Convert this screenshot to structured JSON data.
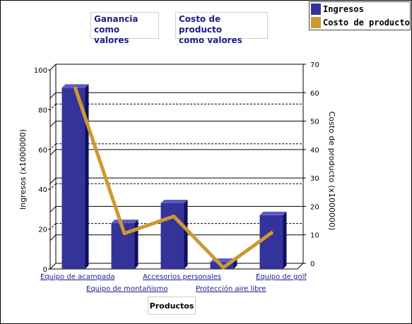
{
  "buttons": {
    "profit_label": "Ganancia\ncomo valores",
    "cost_label": "Costo de producto\ncomo valores"
  },
  "legend": {
    "items": [
      {
        "label": "Ingresos",
        "color": "#333399"
      },
      {
        "label": "Costo de producto",
        "color": "#cc9933"
      }
    ]
  },
  "chart_data": {
    "type": "bar",
    "categories": [
      "Equipo de acampada",
      "Equipo de montañismo",
      "Accesorios personales",
      "Protección aire libre",
      "Equipo de golf"
    ],
    "series": [
      {
        "name": "Ingresos",
        "type": "bar",
        "axis": "left",
        "values": [
          91,
          23,
          33,
          3.5,
          27
        ],
        "color": "#333399"
      },
      {
        "name": "Costo de producto",
        "type": "line",
        "axis": "right",
        "values": [
          64,
          12.5,
          18.5,
          0.5,
          13
        ],
        "color": "#cc9933"
      }
    ],
    "ylabel": "Ingresos (x1000000)",
    "ylabel_right": "Costo de producto (x1000000)",
    "xlabel": "Productos",
    "ylim": [
      0,
      100
    ],
    "y2lim": [
      0,
      70
    ],
    "yticks": [
      "0",
      "20",
      "40",
      "60",
      "80",
      "100"
    ],
    "y2ticks": [
      "0",
      "10",
      "20",
      "30",
      "40",
      "50",
      "60",
      "70"
    ],
    "grid": true
  }
}
